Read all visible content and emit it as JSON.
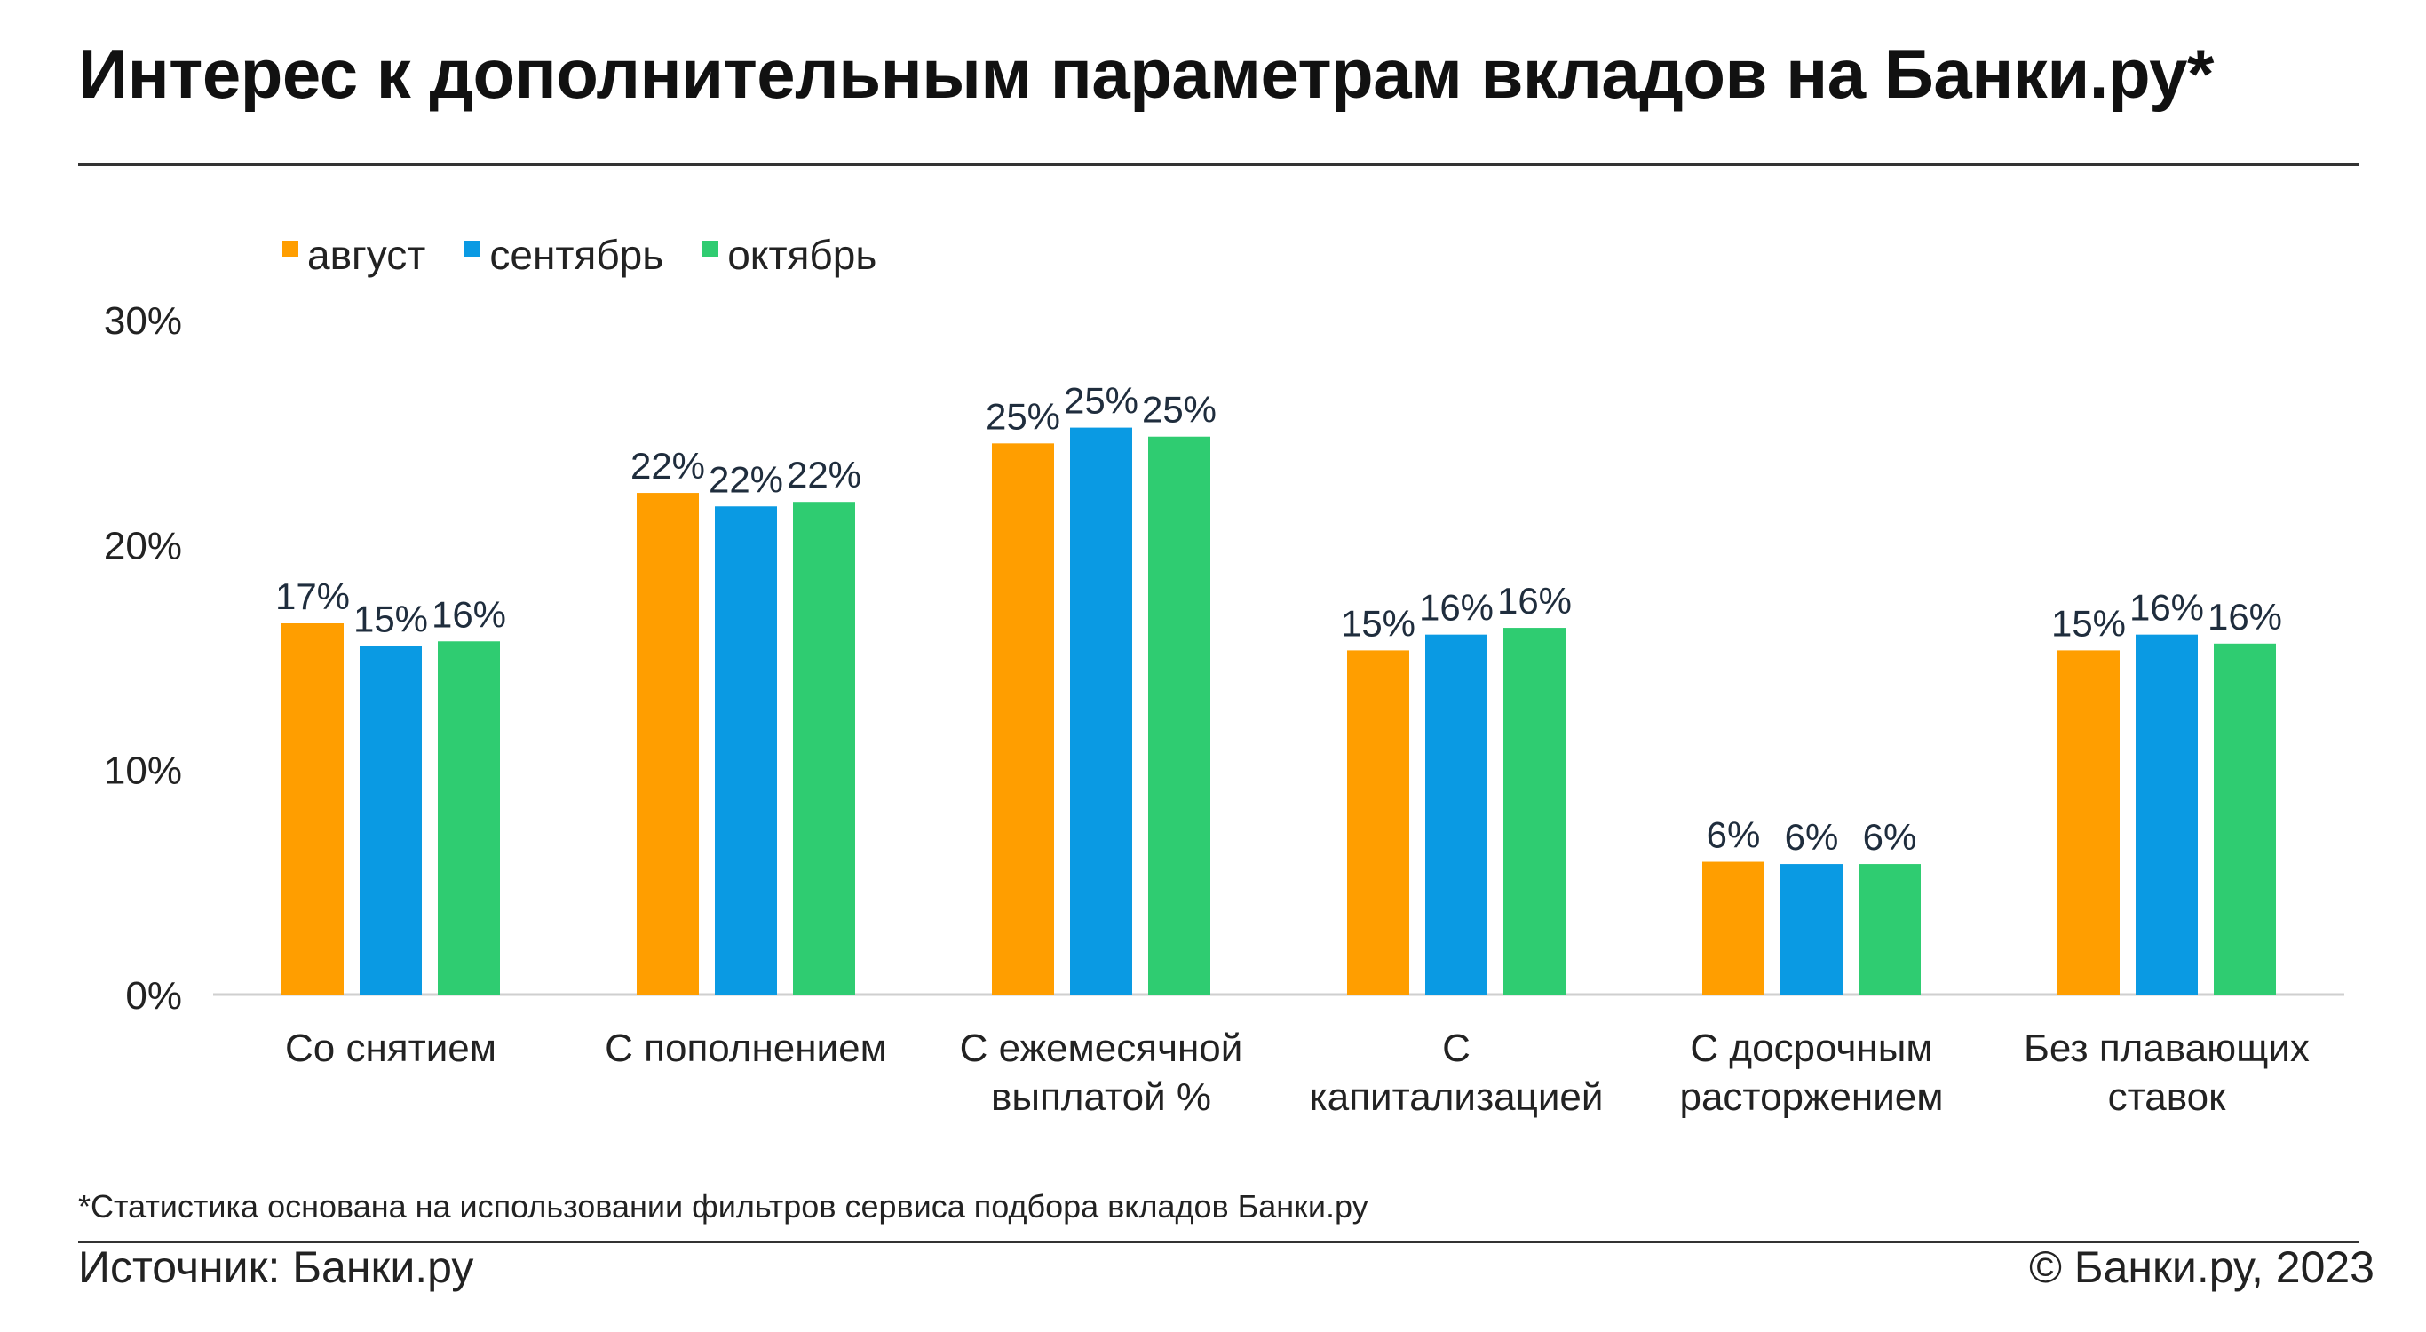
{
  "header": {
    "title": "Интерес к дополнительным параметрам вкладов на Банки.ру*"
  },
  "footer": {
    "footnote": "*Статистика основана на использовании фильтров сервиса подбора вкладов Банки.ру",
    "source": "Источник: Банки.ру",
    "copyright": "© Банки.ру, 2023"
  },
  "chart_data": {
    "type": "bar",
    "title": "Интерес к дополнительным параметрам вкладов на Банки.ру*",
    "xlabel": "",
    "ylabel": "",
    "ylim": [
      0,
      30
    ],
    "yticks": [
      0,
      10,
      20,
      30
    ],
    "ytick_labels": [
      "0%",
      "10%",
      "20%",
      "30%"
    ],
    "grid": false,
    "legend_position": "top-left",
    "categories": [
      [
        "Со снятием"
      ],
      [
        "С пополнением"
      ],
      [
        "С ежемесячной",
        "выплатой %"
      ],
      [
        "С",
        "капитализацией"
      ],
      [
        "С досрочным",
        "расторжением"
      ],
      [
        "Без плавающих",
        "ставок"
      ]
    ],
    "series": [
      {
        "name": "август",
        "color": "#FF9E00",
        "values": [
          16.5,
          22.3,
          24.5,
          15.3,
          5.9,
          15.3
        ],
        "labels": [
          "17%",
          "22%",
          "25%",
          "15%",
          "6%",
          "15%"
        ]
      },
      {
        "name": "сентябрь",
        "color": "#0A9AE3",
        "values": [
          15.5,
          21.7,
          25.2,
          16.0,
          5.8,
          16.0
        ],
        "labels": [
          "15%",
          "22%",
          "25%",
          "16%",
          "6%",
          "16%"
        ]
      },
      {
        "name": "октябрь",
        "color": "#2FCC71",
        "values": [
          15.7,
          21.9,
          24.8,
          16.3,
          5.8,
          15.6
        ],
        "labels": [
          "16%",
          "22%",
          "25%",
          "16%",
          "6%",
          "16%"
        ]
      }
    ]
  }
}
